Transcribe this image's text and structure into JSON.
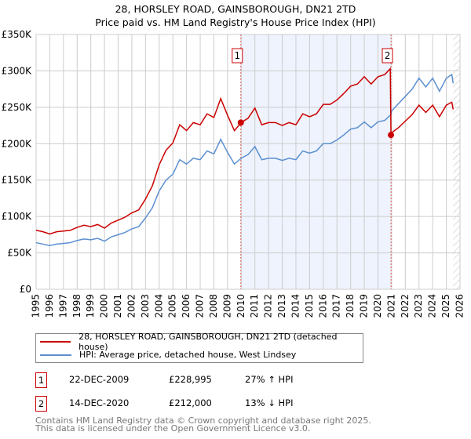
{
  "title": "28, HORSLEY ROAD, GAINSBOROUGH, DN21 2TD",
  "subtitle": "Price paid vs. HM Land Registry's House Price Index (HPI)",
  "chart_data": {
    "type": "line",
    "xlim": [
      1995,
      2026
    ],
    "ylim": [
      0,
      350000
    ],
    "x_ticks": [
      "1995",
      "1996",
      "1997",
      "1998",
      "1999",
      "2000",
      "2001",
      "2002",
      "2003",
      "2004",
      "2005",
      "2006",
      "2007",
      "2008",
      "2009",
      "2010",
      "2011",
      "2012",
      "2013",
      "2014",
      "2015",
      "2016",
      "2017",
      "2018",
      "2019",
      "2020",
      "2021",
      "2022",
      "2023",
      "2024",
      "2025",
      "2026"
    ],
    "y_ticks": [
      {
        "v": 0,
        "label": "£0"
      },
      {
        "v": 50000,
        "label": "£50K"
      },
      {
        "v": 100000,
        "label": "£100K"
      },
      {
        "v": 150000,
        "label": "£150K"
      },
      {
        "v": 200000,
        "label": "£200K"
      },
      {
        "v": 250000,
        "label": "£250K"
      },
      {
        "v": 300000,
        "label": "£300K"
      },
      {
        "v": 350000,
        "label": "£350K"
      }
    ],
    "grid": true,
    "shaded_range": [
      2009.97,
      2020.95
    ],
    "hatched_from": 2025.5,
    "series": [
      {
        "name": "28, HORSLEY ROAD, GAINSBOROUGH, DN21 2TD (detached house)",
        "color": "#cc0000",
        "x": [
          1995,
          1995.5,
          1996,
          1996.5,
          1997,
          1997.5,
          1998,
          1998.5,
          1999,
          1999.5,
          2000,
          2000.5,
          2001,
          2001.5,
          2002,
          2002.5,
          2003,
          2003.5,
          2004,
          2004.5,
          2005,
          2005.5,
          2006,
          2006.5,
          2007,
          2007.5,
          2008,
          2008.5,
          2009,
          2009.5,
          2010,
          2010.5,
          2011,
          2011.5,
          2012,
          2012.5,
          2013,
          2013.5,
          2014,
          2014.5,
          2015,
          2015.5,
          2016,
          2016.5,
          2017,
          2017.5,
          2018,
          2018.5,
          2019,
          2019.5,
          2020,
          2020.5,
          2020.9,
          2020.95,
          2021,
          2021.5,
          2022,
          2022.5,
          2023,
          2023.5,
          2024,
          2024.5,
          2025,
          2025.4,
          2025.5
        ],
        "y": [
          81000,
          79000,
          76000,
          79000,
          80000,
          81000,
          85000,
          88000,
          86000,
          89000,
          84000,
          91000,
          95000,
          99000,
          105000,
          109000,
          124000,
          142000,
          171000,
          191000,
          201000,
          226000,
          218000,
          229000,
          226000,
          241000,
          236000,
          262000,
          239000,
          218000,
          229000,
          235000,
          249000,
          226000,
          229000,
          229000,
          225000,
          229000,
          226000,
          241000,
          237000,
          241000,
          254000,
          254000,
          260000,
          269000,
          279000,
          282000,
          292000,
          282000,
          292000,
          295000,
          303000,
          212000,
          215000,
          222000,
          231000,
          240000,
          253000,
          243000,
          253000,
          237000,
          253000,
          257000,
          247000
        ]
      },
      {
        "name": "HPI: Average price, detached house, West Lindsey",
        "color": "#5b8fd0",
        "x": [
          1995,
          1995.5,
          1996,
          1996.5,
          1997,
          1997.5,
          1998,
          1998.5,
          1999,
          1999.5,
          2000,
          2000.5,
          2001,
          2001.5,
          2002,
          2002.5,
          2003,
          2003.5,
          2004,
          2004.5,
          2005,
          2005.5,
          2006,
          2006.5,
          2007,
          2007.5,
          2008,
          2008.5,
          2009,
          2009.5,
          2010,
          2010.5,
          2011,
          2011.5,
          2012,
          2012.5,
          2013,
          2013.5,
          2014,
          2014.5,
          2015,
          2015.5,
          2016,
          2016.5,
          2017,
          2017.5,
          2018,
          2018.5,
          2019,
          2019.5,
          2020,
          2020.5,
          2020.95,
          2021,
          2021.5,
          2022,
          2022.5,
          2023,
          2023.5,
          2024,
          2024.5,
          2025,
          2025.4,
          2025.5
        ],
        "y": [
          64000,
          62000,
          60000,
          62000,
          63000,
          64000,
          67000,
          69000,
          68000,
          70000,
          66000,
          72000,
          75000,
          78000,
          83000,
          86000,
          98000,
          112000,
          135000,
          150000,
          158000,
          178000,
          172000,
          180000,
          178000,
          190000,
          186000,
          206000,
          188000,
          172000,
          180000,
          185000,
          196000,
          178000,
          180000,
          180000,
          177000,
          180000,
          178000,
          190000,
          187000,
          190000,
          200000,
          200000,
          205000,
          212000,
          220000,
          222000,
          230000,
          222000,
          230000,
          232000,
          240000,
          245000,
          255000,
          265000,
          275000,
          290000,
          278000,
          290000,
          272000,
          290000,
          295000,
          283000
        ]
      }
    ],
    "sales": [
      {
        "id": "1",
        "x": 2009.97,
        "price": 228995
      },
      {
        "id": "2",
        "x": 2020.95,
        "price": 212000
      }
    ]
  },
  "legend": {
    "red": "28, HORSLEY ROAD, GAINSBOROUGH, DN21 2TD (detached house)",
    "blue": "HPI: Average price, detached house, West Lindsey"
  },
  "transactions": [
    {
      "num": "1",
      "date": "22-DEC-2009",
      "price": "£228,995",
      "hpi": "27% ↑ HPI"
    },
    {
      "num": "2",
      "date": "14-DEC-2020",
      "price": "£212,000",
      "hpi": "13% ↓ HPI"
    }
  ],
  "footer": {
    "line1": "Contains HM Land Registry data © Crown copyright and database right 2025.",
    "line2": "This data is licensed under the Open Government Licence v3.0."
  }
}
